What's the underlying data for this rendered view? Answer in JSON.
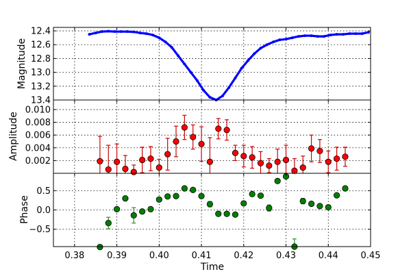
{
  "chart_data": [
    {
      "type": "line",
      "ylabel": "Magnitude",
      "ylim": [
        13.4,
        12.35
      ],
      "inverted_y": true,
      "yticks": [
        "12.4",
        "12.6",
        "12.8",
        "13.0",
        "13.2",
        "13.4"
      ],
      "color": "#0000ff",
      "series": [
        {
          "x": [
            0.3835,
            0.385,
            0.3865,
            0.388,
            0.3895,
            0.391,
            0.3925,
            0.394,
            0.3955,
            0.397,
            0.3985,
            0.4,
            0.4015,
            0.403,
            0.4045,
            0.406,
            0.4075,
            0.409,
            0.4105,
            0.412,
            0.4135,
            0.415,
            0.4165,
            0.418,
            0.4195,
            0.421,
            0.4225,
            0.424,
            0.4255,
            0.427,
            0.4285,
            0.43,
            0.4315,
            0.433,
            0.4345,
            0.436,
            0.4375,
            0.439,
            0.4405,
            0.442,
            0.4435,
            0.445,
            0.4465,
            0.448,
            0.4495
          ],
          "y": [
            12.45,
            12.43,
            12.41,
            12.405,
            12.41,
            12.41,
            12.41,
            12.415,
            12.43,
            12.44,
            12.46,
            12.5,
            12.56,
            12.64,
            12.76,
            12.88,
            13.0,
            13.12,
            13.26,
            13.36,
            13.4,
            13.34,
            13.22,
            13.08,
            12.94,
            12.83,
            12.73,
            12.65,
            12.6,
            12.56,
            12.53,
            12.52,
            12.5,
            12.48,
            12.47,
            12.47,
            12.48,
            12.48,
            12.46,
            12.45,
            12.45,
            12.44,
            12.44,
            12.44,
            12.42
          ]
        }
      ]
    },
    {
      "type": "scatter",
      "ylabel": "Amplitude",
      "ylim": [
        0.0,
        0.0115
      ],
      "yticks": [
        "0.002",
        "0.004",
        "0.006",
        "0.008",
        "0.010"
      ],
      "ytick_values": [
        0.002,
        0.004,
        0.006,
        0.008,
        0.01
      ],
      "color": "#ff0000",
      "errcolor": "#cc0000",
      "points": [
        {
          "x": 0.386,
          "y": 0.0019,
          "e": 0.0039
        },
        {
          "x": 0.388,
          "y": 0.0006,
          "e": 0.0038
        },
        {
          "x": 0.39,
          "y": 0.0018,
          "e": 0.0028
        },
        {
          "x": 0.392,
          "y": 0.0007,
          "e": 0.0021
        },
        {
          "x": 0.394,
          "y": 0.0002,
          "e": 0.0011
        },
        {
          "x": 0.396,
          "y": 0.0021,
          "e": 0.002
        },
        {
          "x": 0.398,
          "y": 0.0023,
          "e": 0.0019
        },
        {
          "x": 0.4,
          "y": 0.0009,
          "e": 0.0013
        },
        {
          "x": 0.402,
          "y": 0.003,
          "e": 0.0025
        },
        {
          "x": 0.404,
          "y": 0.005,
          "e": 0.0024
        },
        {
          "x": 0.406,
          "y": 0.0072,
          "e": 0.0019
        },
        {
          "x": 0.408,
          "y": 0.0057,
          "e": 0.0019
        },
        {
          "x": 0.41,
          "y": 0.0046,
          "e": 0.0027
        },
        {
          "x": 0.412,
          "y": 0.0018,
          "e": 0.0038
        },
        {
          "x": 0.414,
          "y": 0.007,
          "e": 0.0016
        },
        {
          "x": 0.416,
          "y": 0.0068,
          "e": 0.0016
        },
        {
          "x": 0.418,
          "y": 0.0032,
          "e": 0.0012
        },
        {
          "x": 0.42,
          "y": 0.0027,
          "e": 0.0017
        },
        {
          "x": 0.422,
          "y": 0.0025,
          "e": 0.0017
        },
        {
          "x": 0.424,
          "y": 0.0016,
          "e": 0.0018
        },
        {
          "x": 0.426,
          "y": 0.0012,
          "e": 0.0011
        },
        {
          "x": 0.428,
          "y": 0.0018,
          "e": 0.002
        },
        {
          "x": 0.43,
          "y": 0.0021,
          "e": 0.0023
        },
        {
          "x": 0.432,
          "y": 0.0004,
          "e": 0.0019
        },
        {
          "x": 0.434,
          "y": 0.0009,
          "e": 0.0018
        },
        {
          "x": 0.436,
          "y": 0.0039,
          "e": 0.0021
        },
        {
          "x": 0.438,
          "y": 0.0035,
          "e": 0.0018
        },
        {
          "x": 0.44,
          "y": 0.0018,
          "e": 0.0017
        },
        {
          "x": 0.442,
          "y": 0.0023,
          "e": 0.0018
        },
        {
          "x": 0.444,
          "y": 0.0026,
          "e": 0.0015
        }
      ]
    },
    {
      "type": "scatter",
      "ylabel": "Phase",
      "xlabel": "Time",
      "ylim": [
        -0.95,
        0.95
      ],
      "yticks": [
        "0.5",
        "0.0",
        "−0.5"
      ],
      "ytick_values": [
        0.5,
        0.0,
        -0.5
      ],
      "color": "#008000",
      "errcolor": "#2e8b2e",
      "points": [
        {
          "x": 0.386,
          "y": -0.96,
          "e": 0.05
        },
        {
          "x": 0.388,
          "y": -0.34,
          "e": 0.15
        },
        {
          "x": 0.39,
          "y": 0.02,
          "e": 0.04
        },
        {
          "x": 0.392,
          "y": 0.3,
          "e": 0.05
        },
        {
          "x": 0.394,
          "y": -0.14,
          "e": 0.2
        },
        {
          "x": 0.396,
          "y": -0.04,
          "e": 0.04
        },
        {
          "x": 0.398,
          "y": 0.02,
          "e": 0.04
        },
        {
          "x": 0.4,
          "y": 0.27,
          "e": 0.04
        },
        {
          "x": 0.402,
          "y": 0.35,
          "e": 0.03
        },
        {
          "x": 0.404,
          "y": 0.36,
          "e": 0.03
        },
        {
          "x": 0.406,
          "y": 0.56,
          "e": 0.03
        },
        {
          "x": 0.408,
          "y": 0.52,
          "e": 0.03
        },
        {
          "x": 0.41,
          "y": 0.36,
          "e": 0.03
        },
        {
          "x": 0.412,
          "y": 0.15,
          "e": 0.07
        },
        {
          "x": 0.414,
          "y": -0.1,
          "e": 0.03
        },
        {
          "x": 0.416,
          "y": -0.1,
          "e": 0.03
        },
        {
          "x": 0.418,
          "y": -0.12,
          "e": 0.03
        },
        {
          "x": 0.42,
          "y": 0.17,
          "e": 0.03
        },
        {
          "x": 0.422,
          "y": 0.41,
          "e": 0.03
        },
        {
          "x": 0.424,
          "y": 0.37,
          "e": 0.03
        },
        {
          "x": 0.426,
          "y": 0.05,
          "e": 0.08
        },
        {
          "x": 0.428,
          "y": 0.75,
          "e": 0.03
        },
        {
          "x": 0.43,
          "y": 0.87,
          "e": 0.03
        },
        {
          "x": 0.432,
          "y": -0.95,
          "e": 0.2
        },
        {
          "x": 0.434,
          "y": 0.23,
          "e": 0.07
        },
        {
          "x": 0.436,
          "y": 0.16,
          "e": 0.03
        },
        {
          "x": 0.438,
          "y": 0.1,
          "e": 0.03
        },
        {
          "x": 0.44,
          "y": 0.07,
          "e": 0.03
        },
        {
          "x": 0.442,
          "y": 0.38,
          "e": 0.03
        },
        {
          "x": 0.444,
          "y": 0.56,
          "e": 0.03
        }
      ]
    }
  ],
  "x_axis": {
    "xlim": [
      0.375,
      0.45
    ],
    "xticks": [
      "0.38",
      "0.39",
      "0.40",
      "0.41",
      "0.42",
      "0.43",
      "0.44",
      "0.45"
    ],
    "xtick_values": [
      0.38,
      0.39,
      0.4,
      0.41,
      0.42,
      0.43,
      0.44,
      0.45
    ],
    "xlabel": "Time"
  },
  "grid": true
}
